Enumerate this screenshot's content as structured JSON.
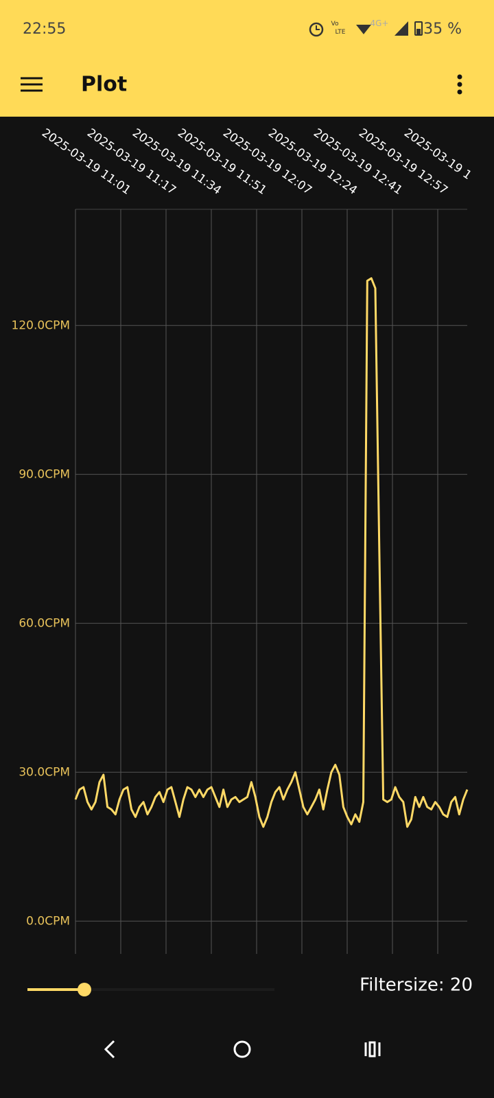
{
  "status_bar": {
    "time": "22:55",
    "battery": "35 %"
  },
  "app_bar": {
    "title": "Plot"
  },
  "chart_data": {
    "type": "line",
    "xticks": [
      "2025-03-19 11:01",
      "2025-03-19 11:17",
      "2025-03-19 11:34",
      "2025-03-19 11:51",
      "2025-03-19 12:07",
      "2025-03-19 12:24",
      "2025-03-19 12:41",
      "2025-03-19 12:57",
      "2025-03-19 1"
    ],
    "series": [
      {
        "color": "#ffd966",
        "values": [
          24.5,
          26.5,
          27,
          24,
          22.5,
          24,
          28,
          29.5,
          23,
          22.5,
          21.5,
          24.5,
          26.5,
          27,
          22.5,
          21,
          23,
          24,
          21.5,
          23,
          25,
          26,
          24,
          26.5,
          27,
          24,
          21,
          24.5,
          27,
          26.5,
          25,
          26.5,
          25,
          26.5,
          27,
          25,
          23,
          26.5,
          23,
          24.5,
          25,
          24,
          24.5,
          25,
          28,
          25,
          21,
          19,
          21,
          24,
          26,
          27,
          24.5,
          26.5,
          28,
          30,
          26.5,
          23,
          21.5,
          23,
          24.5,
          26.5,
          22.5,
          26.5,
          30,
          31.5,
          29.5,
          23,
          21,
          19.5,
          21.5,
          20,
          24,
          129,
          129.5,
          127.5,
          75,
          24.5,
          24,
          24.5,
          27,
          25,
          24,
          19,
          20.5,
          25,
          23,
          25,
          23,
          22.5,
          24,
          23,
          21.5,
          21,
          24,
          25,
          21.5,
          24.5,
          26.5
        ]
      }
    ],
    "ylim": [
      -6.6,
      143.4
    ],
    "yticks": [
      {
        "value": 0,
        "label": "0.0CPM"
      },
      {
        "value": 30,
        "label": "30.0CPM"
      },
      {
        "value": 60,
        "label": "60.0CPM"
      },
      {
        "value": 90,
        "label": "90.0CPM"
      },
      {
        "value": 120,
        "label": "120.0CPM"
      }
    ],
    "grid": true
  },
  "controls": {
    "filter_label": "Filtersize: 20"
  }
}
